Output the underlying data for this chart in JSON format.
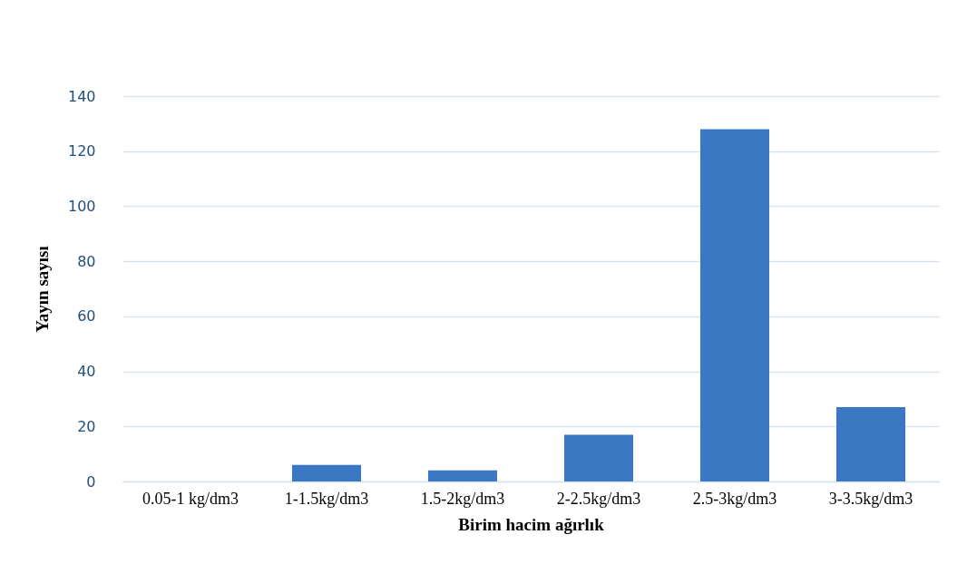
{
  "chart_data": {
    "type": "bar",
    "xlabel": "Birim hacim ağırlık",
    "ylabel": "Yayın sayısı",
    "categories": [
      "0.05-1 kg/dm3",
      "1-1.5kg/dm3",
      "1.5-2kg/dm3",
      "2-2.5kg/dm3",
      "2.5-3kg/dm3",
      "3-3.5kg/dm3"
    ],
    "values": [
      0,
      6,
      4,
      17,
      128,
      27
    ],
    "color": "#3a78c4",
    "ylim": [
      0,
      140
    ],
    "yticks": [
      0,
      20,
      40,
      60,
      80,
      100,
      120,
      140
    ],
    "grid": "y"
  }
}
